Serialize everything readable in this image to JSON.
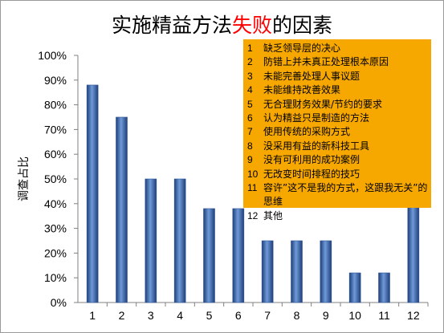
{
  "title": {
    "before": "实施精益方法",
    "highlight": "失败",
    "after": "的因素"
  },
  "colors": {
    "bar": "#2f5597",
    "bar_light": "#6f9ad8",
    "highlight": "#ff0000",
    "legend_bg": "#f6a700"
  },
  "chart_data": {
    "type": "bar",
    "title": "实施精益方法失败的因素",
    "xlabel": "",
    "ylabel": "调查占比",
    "categories": [
      "1",
      "2",
      "3",
      "4",
      "5",
      "6",
      "7",
      "8",
      "9",
      "10",
      "11",
      "12"
    ],
    "values": [
      88,
      75,
      50,
      50,
      38,
      38,
      25,
      25,
      25,
      12,
      12,
      49
    ],
    "ylim": [
      0,
      100
    ],
    "yticks": [
      "0%",
      "10%",
      "20%",
      "30%",
      "40%",
      "50%",
      "60%",
      "70%",
      "80%",
      "90%",
      "100%"
    ],
    "grid": false,
    "legend_placement": "top-right",
    "legend": [
      {
        "num": "1",
        "text": "缺乏领导层的决心"
      },
      {
        "num": "2",
        "text": "防错上并未真正处理根本原因"
      },
      {
        "num": "3",
        "text": "未能完善处理人事议题"
      },
      {
        "num": "4",
        "text": "未能维持改善效果"
      },
      {
        "num": "5",
        "text": "无合理财务效果/节约的要求"
      },
      {
        "num": "6",
        "text": "认为精益只是制造的方法"
      },
      {
        "num": "7",
        "text": "使用传统的采购方式"
      },
      {
        "num": "8",
        "text": "没采用有益的新科技工具"
      },
      {
        "num": "9",
        "text": "没有可利用的成功案例"
      },
      {
        "num": "10",
        "text": "无改变时间排程的技巧"
      },
      {
        "num": "11",
        "text": "容许”这不是我的方式，这跟我无关”的思维"
      },
      {
        "num": "12",
        "text": "其他"
      }
    ]
  }
}
